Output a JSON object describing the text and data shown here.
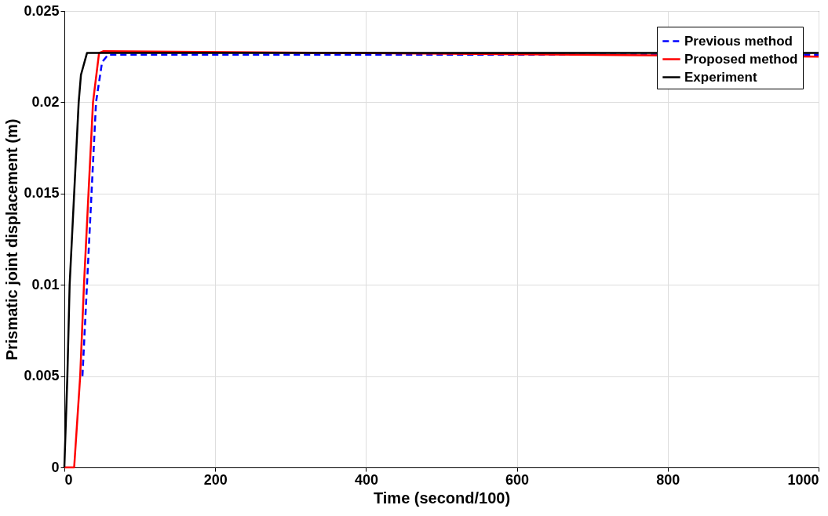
{
  "chart_data": {
    "type": "line",
    "xlabel": "Time (second/100)",
    "ylabel": "Prismatic joint displacement (m)",
    "xlim": [
      0,
      1000
    ],
    "xticks": [
      0,
      200,
      400,
      600,
      800,
      1000
    ],
    "ylim": [
      0,
      0.025
    ],
    "yticks": [
      0,
      0.005,
      0.01,
      0.015,
      0.02,
      0.025
    ],
    "grid": true,
    "legend": "top right",
    "series": [
      {
        "name": "Previous method",
        "color": "#0000ff",
        "line_style": "dashed",
        "x": [
          24,
          30,
          36,
          42,
          50,
          58,
          1000
        ],
        "values": [
          0.005,
          0.01,
          0.015,
          0.02,
          0.0222,
          0.0226,
          0.0226
        ]
      },
      {
        "name": "Proposed method",
        "color": "#ff0000",
        "line_style": "solid",
        "x": [
          0,
          13,
          21,
          26,
          32,
          38,
          46,
          52,
          1000
        ],
        "values": [
          0,
          0,
          0.005,
          0.01,
          0.015,
          0.02,
          0.0227,
          0.0228,
          0.0225
        ]
      },
      {
        "name": "Experiment",
        "color": "#000000",
        "line_style": "solid",
        "x": [
          0,
          4,
          7,
          13,
          19,
          22,
          30,
          1000
        ],
        "values": [
          0,
          0.005,
          0.01,
          0.015,
          0.02,
          0.0215,
          0.0227,
          0.0227
        ]
      }
    ]
  }
}
